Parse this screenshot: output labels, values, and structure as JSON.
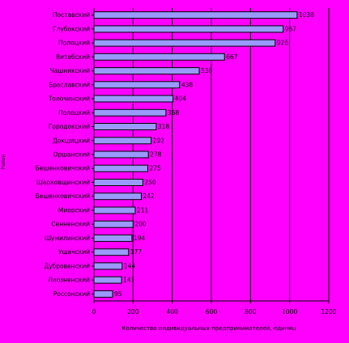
{
  "colors": {
    "background": "#FF00FF",
    "bar_fill": "#9999FF",
    "outline": "#000000",
    "grid": "#000000"
  },
  "chart_data": {
    "type": "bar",
    "orientation": "horizontal",
    "categories": [
      "Поставский",
      "Глубокский",
      "Полоцкий",
      "Витебский",
      "Чашникский",
      "Браславский",
      "Толочинский",
      "Полоцкий",
      "Городокский",
      "Докшицкий",
      "Оршанский",
      "Бешенковичский",
      "Шарковщинский",
      "Бешенковичский",
      "Миорский",
      "Сенненский",
      "Шумилинский",
      "Ушачский",
      "Дубровенский",
      "Лиозненский",
      "Россонский"
    ],
    "values": [
      1038,
      967,
      926,
      667,
      538,
      438,
      404,
      368,
      318,
      292,
      278,
      275,
      250,
      242,
      211,
      200,
      194,
      177,
      144,
      141,
      95
    ],
    "xlim": [
      0,
      1200
    ],
    "xticks": [
      0,
      200,
      400,
      600,
      800,
      1000,
      1200
    ],
    "xlabel": "Количество индивидуальных предпринимателей, единиц",
    "ylabel": "Район",
    "grid": "vertical",
    "legend": "none"
  }
}
